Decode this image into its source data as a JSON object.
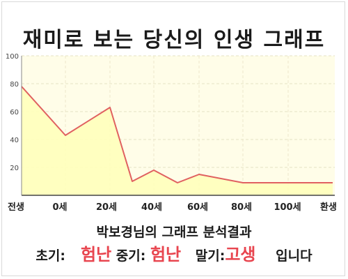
{
  "title": "재미로 보는 당신의 인생 그래프",
  "analysis_title": "박보경님의 그래프 분석결과",
  "result": {
    "early_label": "초기:",
    "early_value": "험난",
    "middle_label": "중기:",
    "middle_value": "험난",
    "late_label": "말기:",
    "late_value": "고생",
    "ending": "입니다"
  },
  "colors": {
    "line": "#e06060",
    "fill": "#ffffbb",
    "plot_bg": "#fffde8",
    "highlight": "#e8454f"
  },
  "chart_data": {
    "type": "area",
    "title": "",
    "xlabel": "",
    "ylabel": "",
    "x_tick_labels": [
      "전생",
      "0세",
      "20세",
      "40세",
      "60세",
      "80세",
      "100세",
      "환생"
    ],
    "y_ticks": [
      "20",
      "40",
      "60",
      "80",
      "100"
    ],
    "ylim": [
      0,
      100
    ],
    "grid": true,
    "legend": "none",
    "series": [
      {
        "x": [
          "전생",
          "0세",
          "20세",
          "30세",
          "40세",
          "50세",
          "60세",
          "80세",
          "100세",
          "환생"
        ],
        "values": [
          78,
          43,
          63,
          10,
          18,
          9,
          15,
          9,
          9,
          9
        ]
      }
    ]
  }
}
